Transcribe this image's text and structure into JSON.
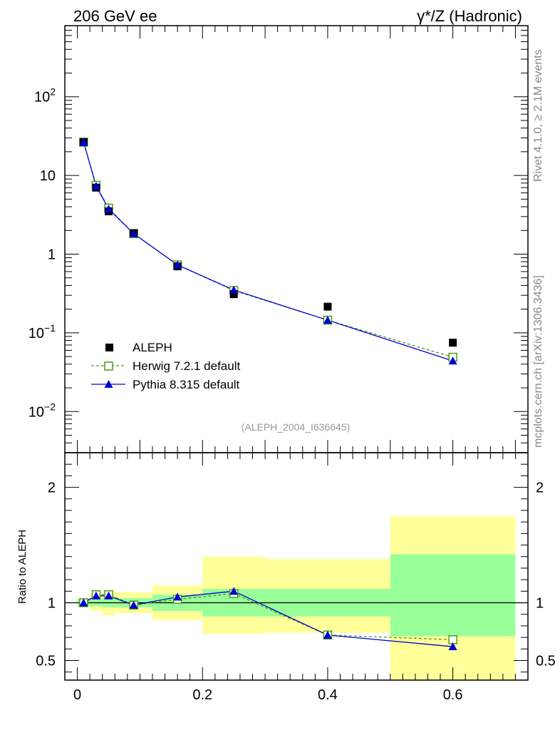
{
  "header": {
    "left_title": "206 GeV ee",
    "right_title": "γ*/Z (Hadronic)"
  },
  "side_labels": {
    "rivet": "Rivet 4.1.0, ≥ 2.1M events",
    "mcplots": "mcplots.cern.ch [arXiv:1306.3436]"
  },
  "analysis_tag": "(ALEPH_2004_I636645)",
  "colors": {
    "data": "#000000",
    "herwig": "#4c9a1a",
    "pythia": "#0000d0",
    "band_outer": "#ffff99",
    "band_inner": "#99ff99"
  },
  "chart_data": [
    {
      "type": "scatter",
      "scale": "log",
      "xlim": [
        -0.02,
        0.72
      ],
      "ylim": [
        0.003,
        800
      ],
      "y_ticks": [
        {
          "value": 0.01,
          "label": "10",
          "exp": "−2"
        },
        {
          "value": 0.1,
          "label": "10",
          "exp": "−1"
        },
        {
          "value": 1,
          "label": "1",
          "exp": ""
        },
        {
          "value": 10,
          "label": "10",
          "exp": ""
        },
        {
          "value": 100,
          "label": "10",
          "exp": "2"
        }
      ],
      "legend": {
        "position": "bottom-left",
        "entries": [
          "ALEPH",
          "Herwig 7.2.1 default",
          "Pythia 8.315 default"
        ]
      },
      "series": [
        {
          "name": "ALEPH",
          "style": "square-filled",
          "x": [
            0.01,
            0.03,
            0.05,
            0.09,
            0.16,
            0.25,
            0.4,
            0.6
          ],
          "y": [
            26.5,
            7.0,
            3.5,
            1.85,
            0.7,
            0.31,
            0.215,
            0.075
          ]
        },
        {
          "name": "Herwig 7.2.1 default",
          "style": "square-open-dashed",
          "x": [
            0.01,
            0.03,
            0.05,
            0.09,
            0.16,
            0.25,
            0.4,
            0.6
          ],
          "y": [
            26.5,
            7.5,
            3.85,
            1.82,
            0.73,
            0.345,
            0.145,
            0.049
          ]
        },
        {
          "name": "Pythia 8.315 default",
          "style": "triangle-filled-solid",
          "x": [
            0.01,
            0.03,
            0.05,
            0.09,
            0.16,
            0.25,
            0.4,
            0.6
          ],
          "y": [
            26.5,
            7.3,
            3.75,
            1.82,
            0.73,
            0.35,
            0.145,
            0.044
          ]
        }
      ]
    },
    {
      "type": "line",
      "xlim": [
        -0.02,
        0.72
      ],
      "ylim": [
        0.33,
        2.3
      ],
      "ylabel": "Ratio to ALEPH",
      "x_ticks": [
        0,
        0.2,
        0.4,
        0.6
      ],
      "x_tick_labels": [
        "0",
        "0.2",
        "0.4",
        "0.6"
      ],
      "y_ticks": [
        0.5,
        1,
        2
      ],
      "y_tick_labels": [
        "0.5",
        "1",
        "2"
      ],
      "bands": [
        {
          "x0": 0.0,
          "x1": 0.02,
          "inner": [
            0.97,
            1.03
          ],
          "outer": [
            0.96,
            1.04
          ]
        },
        {
          "x0": 0.02,
          "x1": 0.04,
          "inner": [
            0.97,
            1.03
          ],
          "outer": [
            0.93,
            1.08
          ]
        },
        {
          "x0": 0.04,
          "x1": 0.06,
          "inner": [
            0.96,
            1.04
          ],
          "outer": [
            0.89,
            1.11
          ]
        },
        {
          "x0": 0.06,
          "x1": 0.12,
          "inner": [
            0.96,
            1.04
          ],
          "outer": [
            0.91,
            1.09
          ]
        },
        {
          "x0": 0.12,
          "x1": 0.2,
          "inner": [
            0.93,
            1.07
          ],
          "outer": [
            0.85,
            1.15
          ]
        },
        {
          "x0": 0.2,
          "x1": 0.3,
          "inner": [
            0.88,
            1.12
          ],
          "outer": [
            0.73,
            1.4
          ]
        },
        {
          "x0": 0.3,
          "x1": 0.5,
          "inner": [
            0.88,
            1.12
          ],
          "outer": [
            0.74,
            1.38
          ]
        },
        {
          "x0": 0.5,
          "x1": 0.7,
          "inner": [
            0.71,
            1.42
          ],
          "outer": [
            0.33,
            1.75
          ]
        }
      ],
      "series": [
        {
          "name": "Herwig 7.2.1 default",
          "style": "square-open-dashed",
          "x": [
            0.01,
            0.03,
            0.05,
            0.09,
            0.16,
            0.25,
            0.4,
            0.6
          ],
          "y": [
            1.0,
            1.07,
            1.07,
            0.98,
            1.03,
            1.08,
            0.72,
            0.68
          ]
        },
        {
          "name": "Pythia 8.315 default",
          "style": "triangle-filled-solid",
          "x": [
            0.01,
            0.03,
            0.05,
            0.09,
            0.16,
            0.25,
            0.4,
            0.6
          ],
          "y": [
            1.0,
            1.06,
            1.06,
            0.98,
            1.05,
            1.1,
            0.72,
            0.62
          ]
        }
      ]
    }
  ]
}
